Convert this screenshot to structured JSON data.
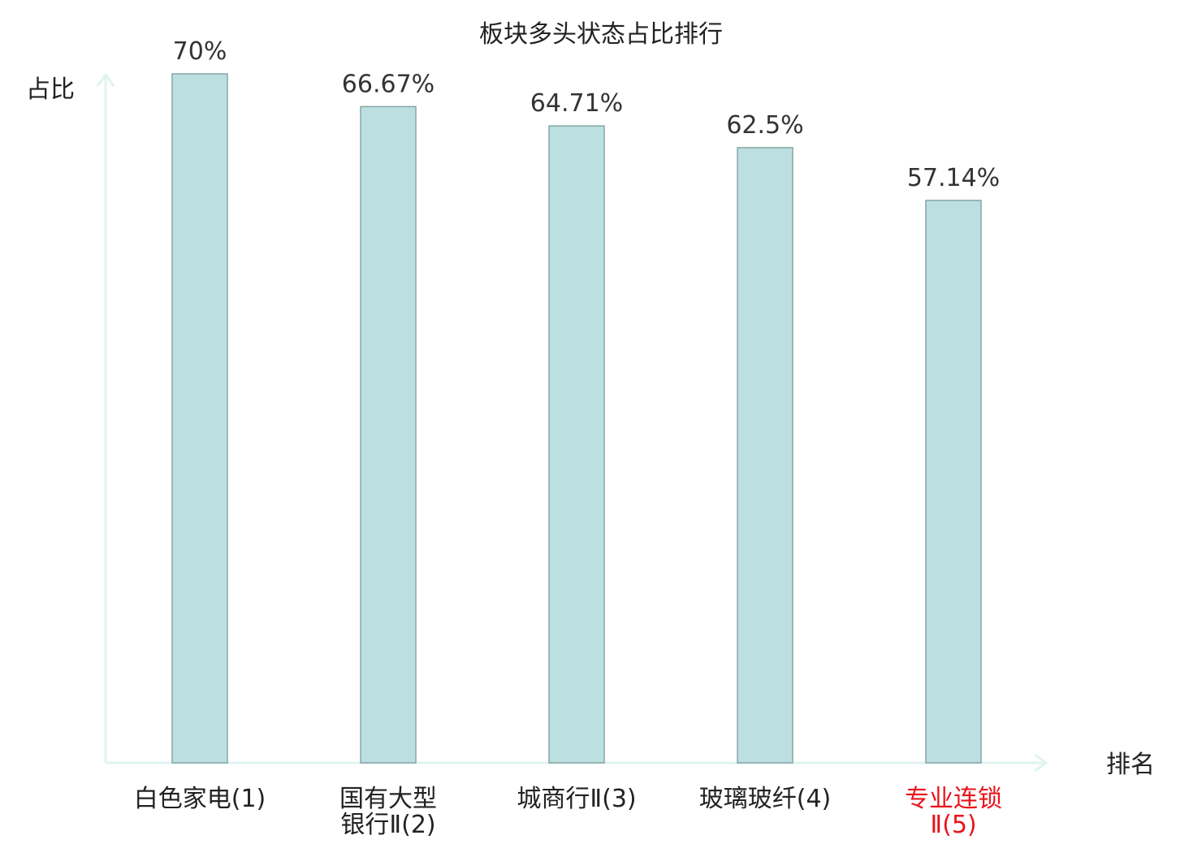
{
  "chart_data": {
    "type": "bar",
    "title": "板块多头状态占比排行",
    "ylabel": "占比",
    "xlabel": "排名",
    "ylim": [
      0,
      70
    ],
    "categories": [
      {
        "lines": [
          "白色家电(1)"
        ],
        "highlight": false
      },
      {
        "lines": [
          "国有大型",
          "银行Ⅱ(2)"
        ],
        "highlight": false
      },
      {
        "lines": [
          "城商行Ⅱ(3)"
        ],
        "highlight": false
      },
      {
        "lines": [
          "玻璃玻纤(4)"
        ],
        "highlight": false
      },
      {
        "lines": [
          "专业连锁",
          "Ⅱ(5)"
        ],
        "highlight": true
      }
    ],
    "values": [
      70,
      66.67,
      64.71,
      62.5,
      57.14
    ],
    "value_labels": [
      "70%",
      "66.67%",
      "64.71%",
      "62.5%",
      "57.14%"
    ],
    "colors": {
      "bar_fill": "#bce0e1",
      "bar_stroke": "#86a5a6",
      "axis": "#e0f3f1",
      "label_normal": "#222222",
      "label_highlight": "#e8141b"
    },
    "grid": false,
    "legend": "none"
  }
}
